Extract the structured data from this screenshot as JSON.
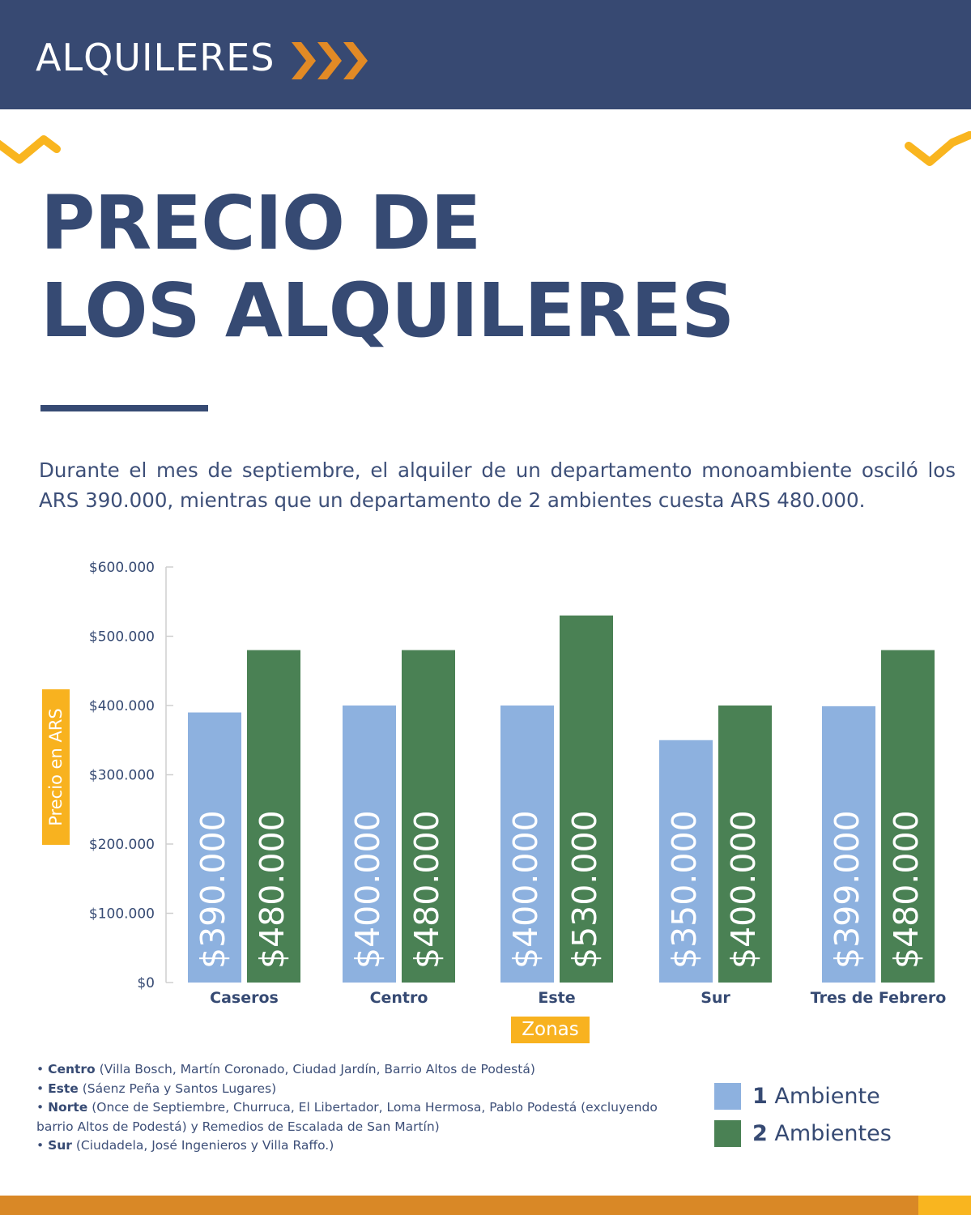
{
  "header": {
    "title": "ALQUILERES",
    "chevron_icon": "triple-chevron-right-icon"
  },
  "title": {
    "line1": "PRECIO DE",
    "line2": "LOS ALQUILERES"
  },
  "intro": "Durante el mes de septiembre, el alquiler de un departamento monoambiente osciló los ARS 390.000, mientras que un departamento de 2 ambientes cuesta ARS 480.000.",
  "colors": {
    "navy": "#374972",
    "blue_bar": "#8db1df",
    "green_bar": "#4a8154",
    "yellow": "#f8b21f",
    "orange": "#d98826"
  },
  "chart_data": {
    "type": "bar",
    "title": "",
    "xlabel": "Zonas",
    "ylabel": "Precio en ARS",
    "ylim": [
      0,
      600000
    ],
    "yticks": [
      0,
      100000,
      200000,
      300000,
      400000,
      500000,
      600000
    ],
    "ytick_labels": [
      "$0",
      "$100.000",
      "$200.000",
      "$300.000",
      "$400.000",
      "$500.000",
      "$600.000"
    ],
    "grid": false,
    "categories": [
      "Caseros",
      "Centro",
      "Este",
      "Sur",
      "Tres de Febrero"
    ],
    "series": [
      {
        "name": "1 Ambiente",
        "values": [
          390000,
          400000,
          400000,
          350000,
          399000
        ],
        "labels": [
          "$390.000",
          "$400.000",
          "$400.000",
          "$350.000",
          "$399.000"
        ]
      },
      {
        "name": "2 Ambientes",
        "values": [
          480000,
          480000,
          530000,
          400000,
          480000
        ],
        "labels": [
          "$480.000",
          "$480.000",
          "$530.000",
          "$400.000",
          "$480.000"
        ]
      }
    ],
    "legend": "bottom-right"
  },
  "legend": [
    {
      "num": "1",
      "text": "Ambiente"
    },
    {
      "num": "2",
      "text": "Ambientes"
    }
  ],
  "notes": [
    {
      "bold": "Centro",
      "text": " (Villa Bosch, Martín Coronado, Ciudad Jardín, Barrio Altos de Podestá)"
    },
    {
      "bold": "Este",
      "text": " (Sáenz Peña y Santos Lugares)"
    },
    {
      "bold": "Norte",
      "text": " (Once de Septiembre, Churruca, El Libertador, Loma Hermosa, Pablo Podestá (excluyendo barrio Altos de Podestá) y Remedios de Escalada de San Martín)"
    },
    {
      "bold": "Sur",
      "text": " (Ciudadela, José Ingenieros y Villa Raffo.)"
    }
  ]
}
